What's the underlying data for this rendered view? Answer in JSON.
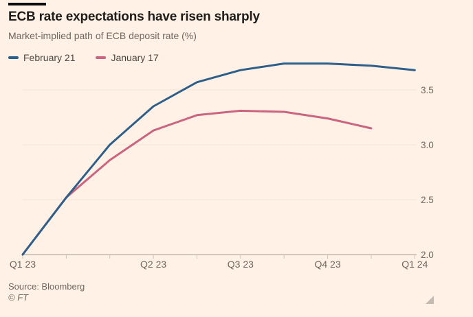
{
  "colors": {
    "background": "#FFF1E5",
    "title_text": "#1f1d1b",
    "muted_text": "#6e675f",
    "legend_text": "#4a4540",
    "grid": "#f0e2d3",
    "axis": "#a69d91",
    "tick": "#cbc2b6",
    "series_blue": "#2d5f8a",
    "series_pink": "#ca6480"
  },
  "footer": {
    "source": "Source: Bloomberg",
    "copyright": "© FT"
  },
  "chart_data": {
    "type": "line",
    "title": "ECB rate expectations have risen sharply",
    "subtitle": "Market-implied path of ECB deposit rate (%)",
    "legend_position": "top-left",
    "grid": true,
    "x_axis": {
      "tick_count": 10,
      "labels": [
        {
          "tick": 0,
          "label": "Q1 23"
        },
        {
          "tick": 3,
          "label": "Q2 23"
        },
        {
          "tick": 5,
          "label": "Q3 23"
        },
        {
          "tick": 7,
          "label": "Q4 23"
        },
        {
          "tick": 9,
          "label": "Q1 24"
        }
      ]
    },
    "y_axis": {
      "side": "right",
      "ticks": [
        2.0,
        2.5,
        3.0,
        3.5
      ],
      "range": [
        2.0,
        3.78
      ]
    },
    "series": [
      {
        "name": "February 21",
        "color": "#2d5f8a",
        "values": [
          2.0,
          2.52,
          3.0,
          3.35,
          3.57,
          3.68,
          3.74,
          3.74,
          3.72,
          3.68
        ]
      },
      {
        "name": "January 17",
        "color": "#ca6480",
        "values": [
          2.0,
          2.52,
          2.86,
          3.13,
          3.27,
          3.31,
          3.3,
          3.24,
          3.15,
          null
        ]
      }
    ]
  }
}
